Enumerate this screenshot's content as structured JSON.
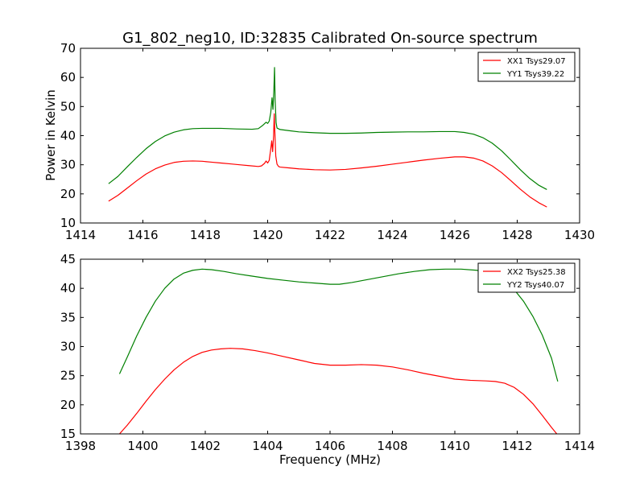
{
  "figure": {
    "title": "G1_802_neg10, ID:32835 Calibrated On-source spectrum",
    "shared_ylabel": "Power in Kelvin",
    "shared_xlabel": "Frequency (MHz)"
  },
  "chart_data": [
    {
      "type": "line",
      "title": "G1_802_neg10, ID:32835 Calibrated On-source spectrum",
      "ylabel": "Power in Kelvin",
      "xlabel": "",
      "xlim": [
        1414,
        1430
      ],
      "ylim": [
        10,
        70
      ],
      "xticks": [
        1414,
        1416,
        1418,
        1420,
        1422,
        1424,
        1426,
        1428,
        1430
      ],
      "yticks": [
        10,
        20,
        30,
        40,
        50,
        60,
        70
      ],
      "legend_position": "top-right",
      "grid": false,
      "series": [
        {
          "name": "XX1 Tsys29.07",
          "color": "#ff0000",
          "points": [
            [
              1414.9,
              17.5
            ],
            [
              1415.2,
              19.5
            ],
            [
              1415.5,
              22.0
            ],
            [
              1415.8,
              24.5
            ],
            [
              1416.1,
              26.8
            ],
            [
              1416.4,
              28.6
            ],
            [
              1416.7,
              29.9
            ],
            [
              1417.0,
              30.8
            ],
            [
              1417.3,
              31.2
            ],
            [
              1417.6,
              31.3
            ],
            [
              1417.9,
              31.2
            ],
            [
              1418.2,
              30.9
            ],
            [
              1418.5,
              30.6
            ],
            [
              1418.8,
              30.3
            ],
            [
              1419.1,
              30.0
            ],
            [
              1419.4,
              29.7
            ],
            [
              1419.7,
              29.4
            ],
            [
              1419.8,
              29.6
            ],
            [
              1419.9,
              30.5
            ],
            [
              1419.95,
              31.3
            ],
            [
              1420.0,
              30.6
            ],
            [
              1420.05,
              31.5
            ],
            [
              1420.1,
              35.5
            ],
            [
              1420.13,
              38.2
            ],
            [
              1420.16,
              34.5
            ],
            [
              1420.19,
              40.0
            ],
            [
              1420.21,
              47.5
            ],
            [
              1420.23,
              41.5
            ],
            [
              1420.26,
              33.0
            ],
            [
              1420.3,
              30.2
            ],
            [
              1420.35,
              29.4
            ],
            [
              1420.4,
              29.2
            ],
            [
              1420.7,
              28.9
            ],
            [
              1421.0,
              28.6
            ],
            [
              1421.5,
              28.3
            ],
            [
              1422.0,
              28.2
            ],
            [
              1422.5,
              28.4
            ],
            [
              1423.0,
              28.9
            ],
            [
              1423.5,
              29.5
            ],
            [
              1424.0,
              30.2
            ],
            [
              1424.5,
              30.9
            ],
            [
              1425.0,
              31.6
            ],
            [
              1425.5,
              32.2
            ],
            [
              1426.0,
              32.7
            ],
            [
              1426.3,
              32.7
            ],
            [
              1426.6,
              32.3
            ],
            [
              1426.9,
              31.3
            ],
            [
              1427.2,
              29.6
            ],
            [
              1427.5,
              27.3
            ],
            [
              1427.8,
              24.5
            ],
            [
              1428.1,
              21.6
            ],
            [
              1428.4,
              19.0
            ],
            [
              1428.7,
              16.9
            ],
            [
              1428.95,
              15.5
            ]
          ]
        },
        {
          "name": "YY1 Tsys39.22",
          "color": "#008000",
          "points": [
            [
              1414.9,
              23.5
            ],
            [
              1415.2,
              26.0
            ],
            [
              1415.5,
              29.3
            ],
            [
              1415.8,
              32.5
            ],
            [
              1416.1,
              35.5
            ],
            [
              1416.4,
              38.0
            ],
            [
              1416.7,
              39.9
            ],
            [
              1417.0,
              41.2
            ],
            [
              1417.3,
              42.0
            ],
            [
              1417.6,
              42.4
            ],
            [
              1417.9,
              42.5
            ],
            [
              1418.5,
              42.5
            ],
            [
              1419.0,
              42.3
            ],
            [
              1419.5,
              42.2
            ],
            [
              1419.7,
              42.4
            ],
            [
              1419.85,
              43.6
            ],
            [
              1419.95,
              44.6
            ],
            [
              1420.0,
              44.2
            ],
            [
              1420.05,
              45.0
            ],
            [
              1420.1,
              48.0
            ],
            [
              1420.14,
              53.0
            ],
            [
              1420.17,
              49.0
            ],
            [
              1420.2,
              56.0
            ],
            [
              1420.22,
              63.4
            ],
            [
              1420.24,
              52.0
            ],
            [
              1420.27,
              44.5
            ],
            [
              1420.3,
              42.6
            ],
            [
              1420.4,
              42.1
            ],
            [
              1420.7,
              41.7
            ],
            [
              1421.0,
              41.3
            ],
            [
              1421.5,
              41.0
            ],
            [
              1422.0,
              40.8
            ],
            [
              1422.5,
              40.8
            ],
            [
              1423.0,
              40.9
            ],
            [
              1423.5,
              41.1
            ],
            [
              1424.0,
              41.2
            ],
            [
              1424.5,
              41.3
            ],
            [
              1425.0,
              41.3
            ],
            [
              1425.5,
              41.4
            ],
            [
              1426.0,
              41.4
            ],
            [
              1426.3,
              41.1
            ],
            [
              1426.6,
              40.5
            ],
            [
              1426.9,
              39.3
            ],
            [
              1427.2,
              37.4
            ],
            [
              1427.5,
              34.8
            ],
            [
              1427.8,
              31.6
            ],
            [
              1428.1,
              28.3
            ],
            [
              1428.4,
              25.3
            ],
            [
              1428.7,
              22.9
            ],
            [
              1428.95,
              21.5
            ]
          ]
        }
      ]
    },
    {
      "type": "line",
      "title": "",
      "ylabel": "",
      "xlabel": "Frequency (MHz)",
      "xlim": [
        1398,
        1414
      ],
      "ylim": [
        15,
        45
      ],
      "xticks": [
        1398,
        1400,
        1402,
        1404,
        1406,
        1408,
        1410,
        1412,
        1414
      ],
      "yticks": [
        15,
        20,
        25,
        30,
        35,
        40,
        45
      ],
      "legend_position": "top-right",
      "grid": false,
      "series": [
        {
          "name": "XX2 Tsys25.38",
          "color": "#ff0000",
          "points": [
            [
              1399.25,
              15.0
            ],
            [
              1399.5,
              16.5
            ],
            [
              1399.8,
              18.5
            ],
            [
              1400.1,
              20.6
            ],
            [
              1400.4,
              22.6
            ],
            [
              1400.7,
              24.4
            ],
            [
              1401.0,
              26.0
            ],
            [
              1401.3,
              27.3
            ],
            [
              1401.6,
              28.3
            ],
            [
              1401.9,
              29.0
            ],
            [
              1402.2,
              29.4
            ],
            [
              1402.5,
              29.6
            ],
            [
              1402.8,
              29.7
            ],
            [
              1403.2,
              29.6
            ],
            [
              1403.6,
              29.3
            ],
            [
              1404.0,
              28.9
            ],
            [
              1404.5,
              28.3
            ],
            [
              1405.0,
              27.7
            ],
            [
              1405.5,
              27.1
            ],
            [
              1406.0,
              26.8
            ],
            [
              1406.5,
              26.8
            ],
            [
              1407.0,
              26.9
            ],
            [
              1407.5,
              26.8
            ],
            [
              1408.0,
              26.5
            ],
            [
              1408.5,
              26.0
            ],
            [
              1409.0,
              25.4
            ],
            [
              1409.5,
              24.9
            ],
            [
              1410.0,
              24.4
            ],
            [
              1410.5,
              24.2
            ],
            [
              1411.0,
              24.1
            ],
            [
              1411.3,
              24.0
            ],
            [
              1411.6,
              23.7
            ],
            [
              1411.9,
              23.0
            ],
            [
              1412.2,
              21.8
            ],
            [
              1412.5,
              20.2
            ],
            [
              1412.8,
              18.2
            ],
            [
              1413.1,
              16.1
            ],
            [
              1413.3,
              14.8
            ]
          ]
        },
        {
          "name": "YY2 Tsys40.07",
          "color": "#008000",
          "points": [
            [
              1399.25,
              25.3
            ],
            [
              1399.5,
              28.2
            ],
            [
              1399.8,
              31.8
            ],
            [
              1400.1,
              35.0
            ],
            [
              1400.4,
              37.8
            ],
            [
              1400.7,
              40.0
            ],
            [
              1401.0,
              41.6
            ],
            [
              1401.3,
              42.6
            ],
            [
              1401.6,
              43.1
            ],
            [
              1401.9,
              43.3
            ],
            [
              1402.2,
              43.2
            ],
            [
              1402.6,
              42.9
            ],
            [
              1403.0,
              42.5
            ],
            [
              1403.5,
              42.1
            ],
            [
              1404.0,
              41.7
            ],
            [
              1404.5,
              41.4
            ],
            [
              1405.0,
              41.1
            ],
            [
              1405.5,
              40.9
            ],
            [
              1406.0,
              40.7
            ],
            [
              1406.3,
              40.7
            ],
            [
              1406.7,
              41.0
            ],
            [
              1407.2,
              41.5
            ],
            [
              1407.7,
              42.0
            ],
            [
              1408.2,
              42.5
            ],
            [
              1408.7,
              42.9
            ],
            [
              1409.2,
              43.2
            ],
            [
              1409.7,
              43.3
            ],
            [
              1410.2,
              43.3
            ],
            [
              1410.7,
              43.1
            ],
            [
              1411.0,
              42.8
            ],
            [
              1411.3,
              42.2
            ],
            [
              1411.6,
              41.2
            ],
            [
              1411.9,
              39.8
            ],
            [
              1412.2,
              37.8
            ],
            [
              1412.5,
              35.2
            ],
            [
              1412.8,
              32.0
            ],
            [
              1413.1,
              28.0
            ],
            [
              1413.3,
              24.0
            ]
          ]
        }
      ]
    }
  ]
}
